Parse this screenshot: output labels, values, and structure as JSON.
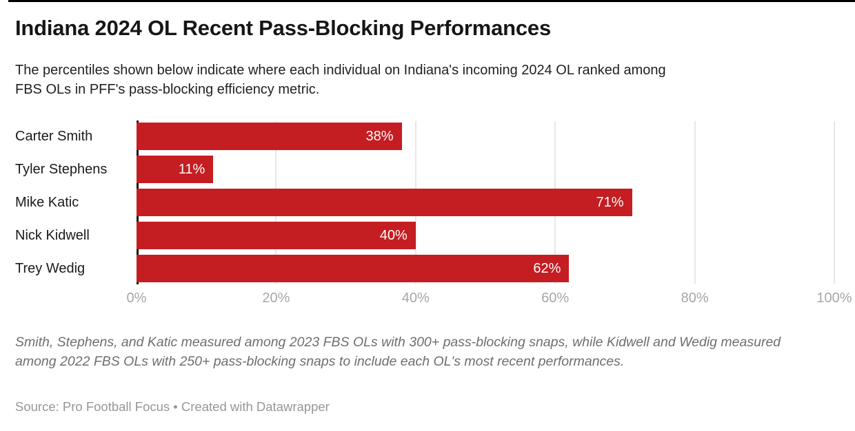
{
  "header": {
    "title": "Indiana 2024 OL Recent Pass-Blocking Performances",
    "subtitle": "The percentiles shown below indicate where each individual on Indiana's incoming 2024 OL ranked among FBS OLs in PFF's pass-blocking efficiency metric."
  },
  "chart_data": {
    "type": "bar",
    "orientation": "horizontal",
    "title": "Indiana 2024 OL Recent Pass-Blocking Performances",
    "categories": [
      "Carter Smith",
      "Tyler Stephens",
      "Mike Katic",
      "Nick Kidwell",
      "Trey Wedig"
    ],
    "values": [
      38,
      11,
      71,
      40,
      62
    ],
    "value_labels": [
      "38%",
      "11%",
      "71%",
      "40%",
      "62%"
    ],
    "x_tick_values": [
      0,
      20,
      40,
      60,
      80,
      100
    ],
    "x_tick_labels": [
      "0%",
      "20%",
      "40%",
      "60%",
      "80%",
      "100%"
    ],
    "xlim": [
      0,
      100
    ],
    "grid": true,
    "legend": "none",
    "colors": {
      "bar": "#c41d22",
      "value_label": "#ffffff",
      "gridline": "#e7e7e7",
      "axis_line": "#111111",
      "tick_label": "#a6a6a6"
    }
  },
  "footer": {
    "note": "Smith, Stephens, and Katic measured among 2023 FBS OLs with 300+ pass-blocking snaps, while Kidwell and Wedig measured among 2022 FBS OLs with 250+ pass-blocking snaps to include each OL's most recent performances.",
    "source": "Source: Pro Football Focus • Created with Datawrapper"
  }
}
